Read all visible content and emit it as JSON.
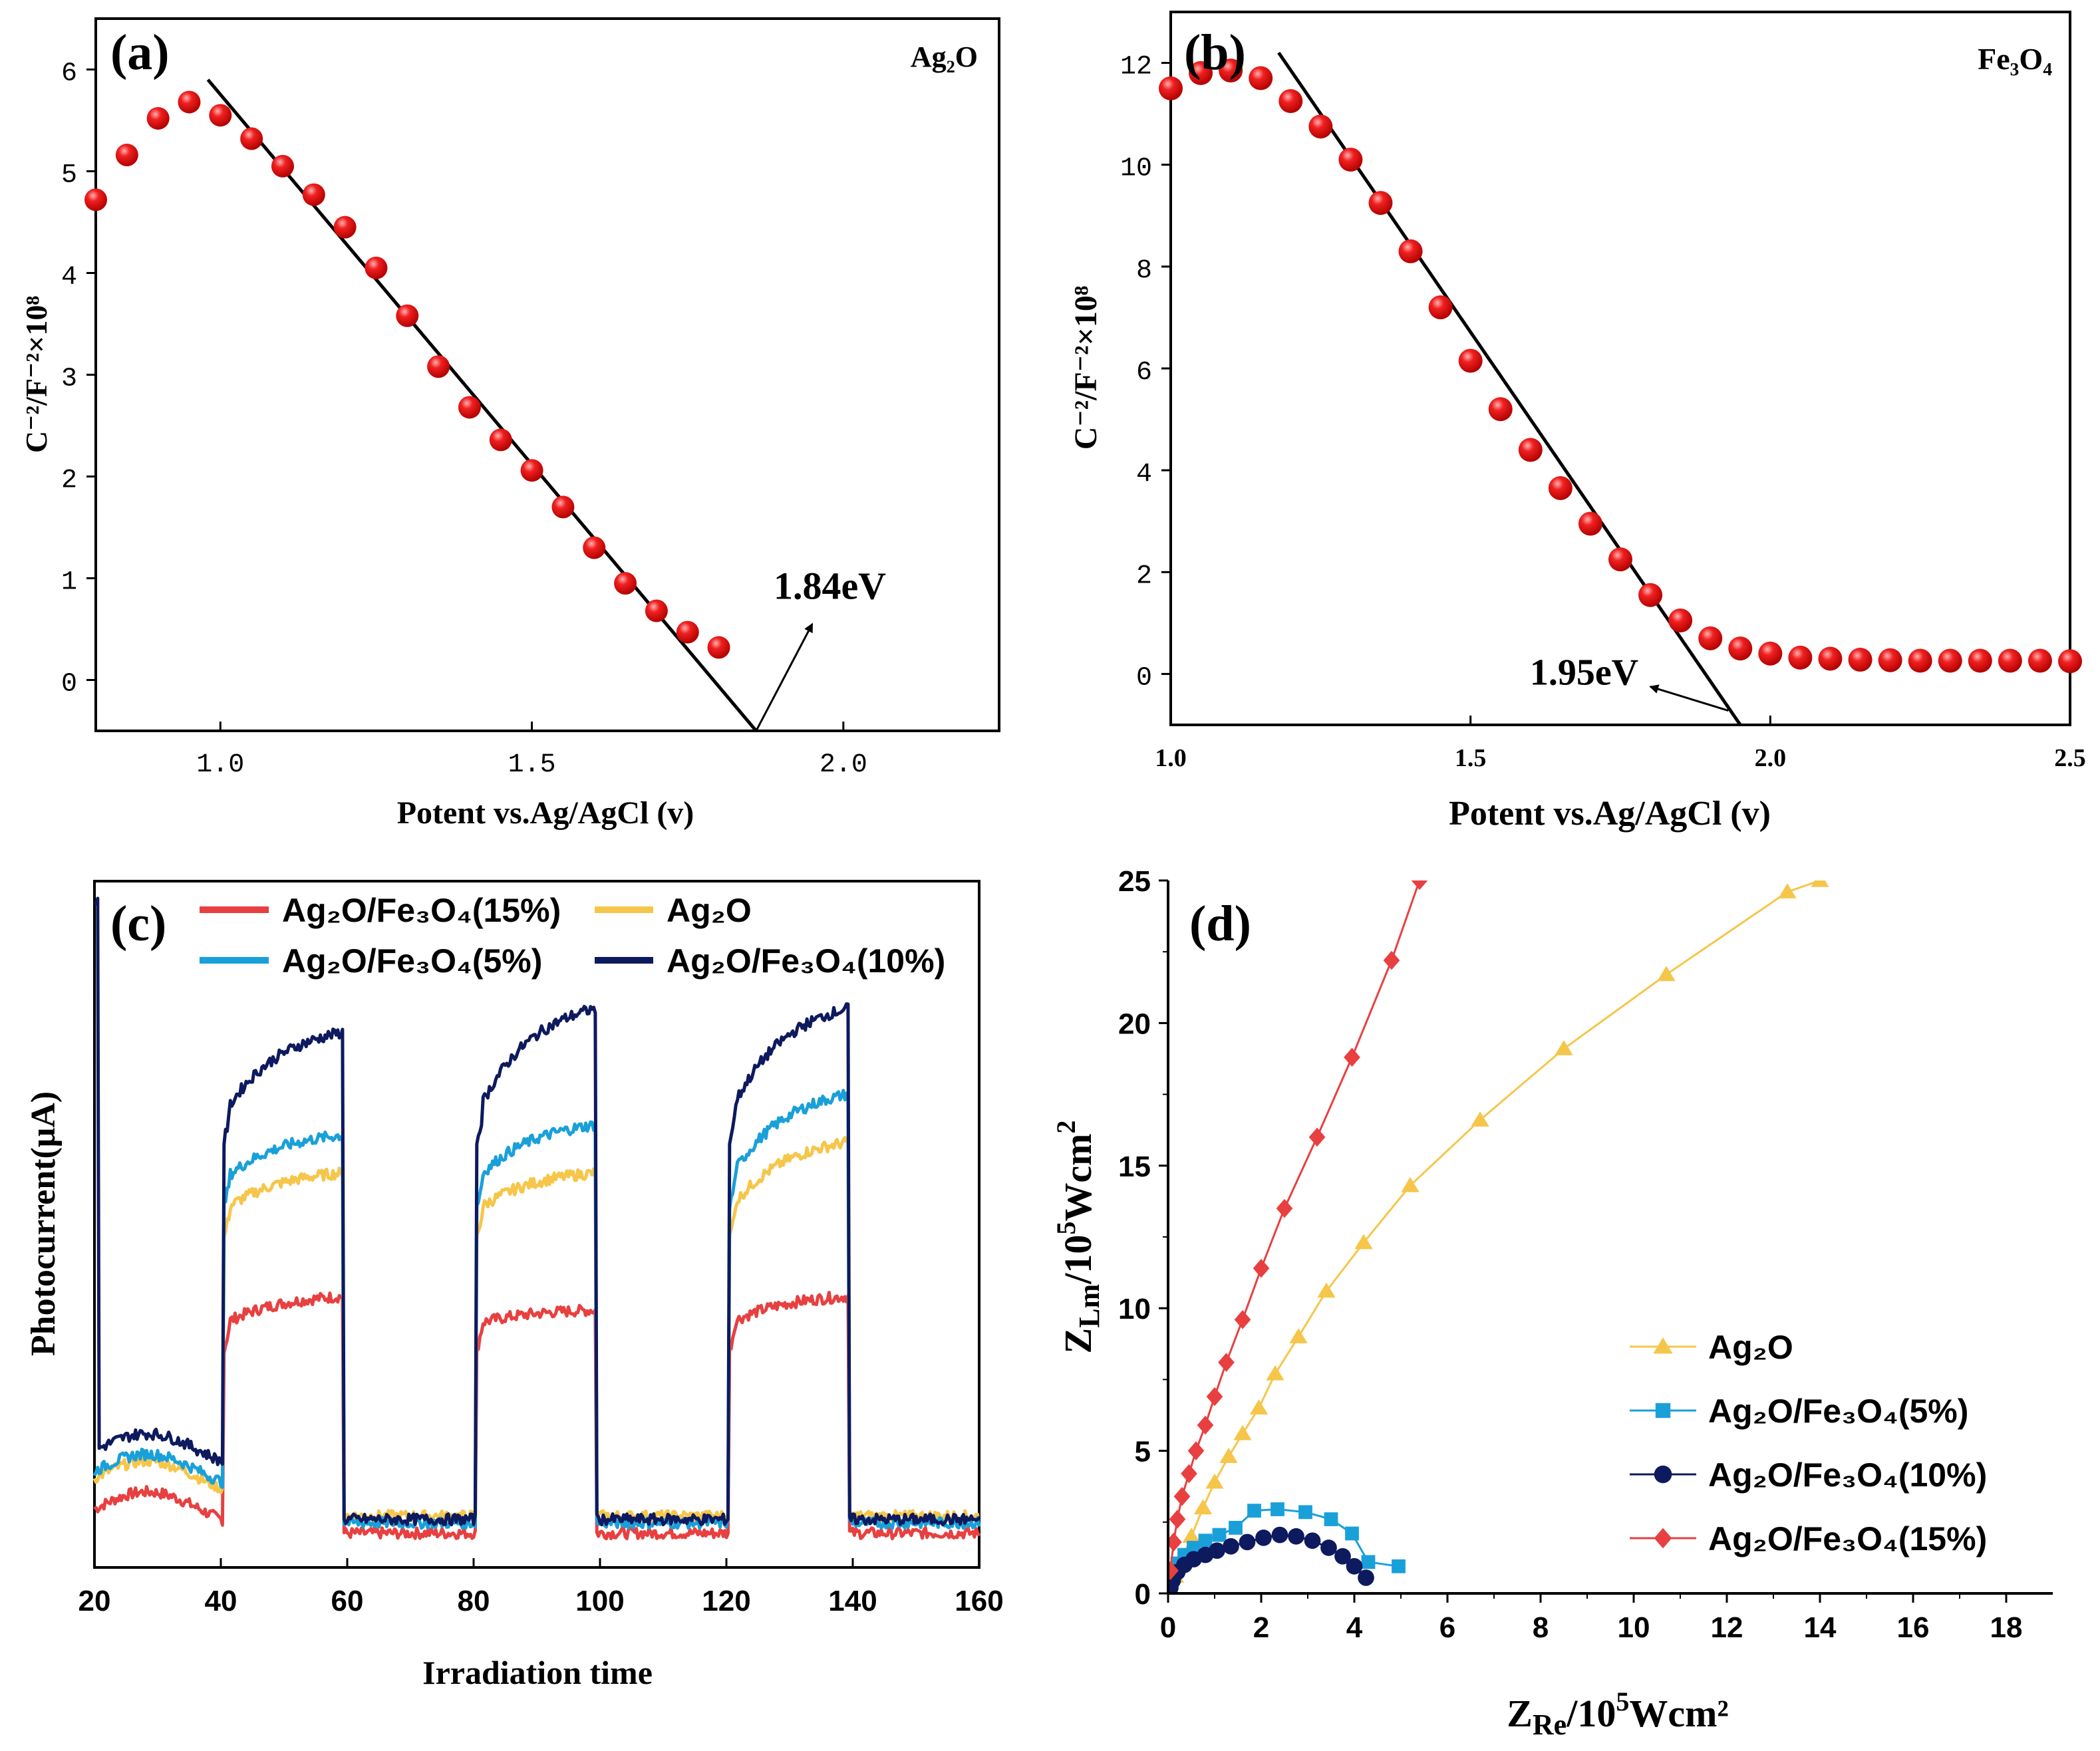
{
  "colors": {
    "red": "#e8201e",
    "yellow": "#f6c64a",
    "cyan": "#1aa0d9",
    "navy": "#0e1a5e",
    "c_red": "#e84040",
    "axis": "#000000"
  },
  "chart_data": [
    {
      "id": "a",
      "type": "scatter",
      "panel_label": "(a)",
      "corner_label": "Ag₂O",
      "xlabel": "Potent vs.Ag/AgCl (v)",
      "ylabel": "C⁻²/F⁻²×10⁸",
      "xlim": [
        0.8,
        2.25
      ],
      "ylim": [
        -0.5,
        6.5
      ],
      "xticks": [
        1.0,
        1.5,
        2.0
      ],
      "xtick_labels": [
        "1.0",
        "1.5",
        "2.0"
      ],
      "yticks": [
        0,
        1,
        2,
        3,
        4,
        5,
        6
      ],
      "ytick_labels": [
        "0",
        "1",
        "2",
        "3",
        "4",
        "5",
        "6"
      ],
      "points": {
        "x": [
          0.8,
          0.85,
          0.9,
          0.95,
          1.0,
          1.05,
          1.1,
          1.15,
          1.2,
          1.25,
          1.3,
          1.35,
          1.4,
          1.45,
          1.5,
          1.55,
          1.6,
          1.65,
          1.7,
          1.75,
          1.8
        ],
        "y": [
          4.72,
          5.16,
          5.52,
          5.68,
          5.55,
          5.32,
          5.05,
          4.77,
          4.45,
          4.05,
          3.58,
          3.08,
          2.68,
          2.36,
          2.06,
          1.7,
          1.3,
          0.95,
          0.68,
          0.47,
          0.32
        ]
      },
      "fit_line": {
        "x": [
          0.98,
          1.86
        ],
        "y": [
          5.9,
          -0.5
        ]
      },
      "annotation": {
        "text": "1.84eV",
        "arrow_from": [
          1.86,
          -0.5
        ],
        "arrow_to": [
          1.95,
          0.55
        ],
        "text_at": [
          1.92,
          0.85
        ]
      }
    },
    {
      "id": "b",
      "type": "scatter",
      "panel_label": "(b)",
      "corner_label": "Fe₃O₄",
      "xlabel": "Potent vs.Ag/AgCl (v)",
      "ylabel": "C⁻²/F⁻²×10⁸",
      "xlim": [
        1.0,
        2.5
      ],
      "ylim": [
        -1,
        13
      ],
      "xticks": [
        1.0,
        1.5,
        2.0,
        2.5
      ],
      "xtick_labels": [
        "1.0",
        "1.5",
        "2.0",
        "2.5"
      ],
      "yticks": [
        0,
        2,
        4,
        6,
        8,
        10,
        12
      ],
      "ytick_labels": [
        "0",
        "2",
        "4",
        "6",
        "8",
        "10",
        "12"
      ],
      "points": {
        "x": [
          1.0,
          1.05,
          1.1,
          1.15,
          1.2,
          1.25,
          1.3,
          1.35,
          1.4,
          1.45,
          1.5,
          1.55,
          1.6,
          1.65,
          1.7,
          1.75,
          1.8,
          1.85,
          1.9,
          1.95,
          2.0,
          2.05,
          2.1,
          2.15,
          2.2,
          2.25,
          2.3,
          2.35,
          2.4,
          2.45,
          2.5
        ],
        "y": [
          11.5,
          11.8,
          11.85,
          11.7,
          11.25,
          10.75,
          10.1,
          9.25,
          8.3,
          7.2,
          6.15,
          5.2,
          4.4,
          3.65,
          2.95,
          2.25,
          1.55,
          1.05,
          0.7,
          0.5,
          0.4,
          0.32,
          0.3,
          0.28,
          0.27,
          0.26,
          0.26,
          0.26,
          0.26,
          0.26,
          0.25
        ]
      },
      "fit_line": {
        "x": [
          1.18,
          1.95
        ],
        "y": [
          12.2,
          -1
        ]
      },
      "annotation": {
        "text": "1.95eV",
        "arrow_from": [
          1.93,
          -0.72
        ],
        "arrow_to": [
          1.8,
          -0.25
        ],
        "text_at": [
          1.61,
          0.05
        ]
      }
    },
    {
      "id": "c",
      "type": "line",
      "panel_label": "(c)",
      "xlabel": "Irradiation time",
      "ylabel": "Photocurrent(μA)",
      "xlim": [
        20,
        160
      ],
      "ylim": [
        0,
        100
      ],
      "xticks": [
        20,
        40,
        60,
        80,
        100,
        120,
        140,
        160
      ],
      "xtick_labels": [
        "20",
        "40",
        "60",
        "80",
        "100",
        "120",
        "140",
        "160"
      ],
      "legend": [
        {
          "name": "Ag₂O/Fe₃O₄(15%)",
          "color": "#e84040"
        },
        {
          "name": "Ag₂O",
          "color": "#f6c64a"
        },
        {
          "name": "Ag₂O/Fe₃O₄(5%)",
          "color": "#1aa0d9"
        },
        {
          "name": "Ag₂O/Fe₃O₄(10%)",
          "color": "#0e1a5e"
        }
      ],
      "series": [
        {
          "key": "navy",
          "color": "#0e1a5e",
          "off_level": 18.5,
          "on_start": 66.0,
          "on_end": 78.0,
          "on3_end": 81.5,
          "on2_end": 81.5,
          "dark_level": 5.5,
          "spike": 97.0
        },
        {
          "key": "cyan",
          "color": "#1aa0d9",
          "off_level": 15.5,
          "on_start": 56.5,
          "on_end": 63.0,
          "on2_end": 64.5,
          "on3_end": 69.0,
          "dark_level": 5.0
        },
        {
          "key": "yellow",
          "color": "#f6c64a",
          "off_level": 14.5,
          "on_start": 52.0,
          "on_end": 57.5,
          "on2_end": 57.5,
          "on3_end": 62.0,
          "dark_level": 6.0
        },
        {
          "key": "red",
          "color": "#e84040",
          "off_level": 10.0,
          "on_start": 35.5,
          "on_end": 39.5,
          "on2_end": 37.5,
          "on3_end": 39.5,
          "dark_level": 3.5
        }
      ]
    },
    {
      "id": "d",
      "type": "scatter",
      "panel_label": "(d)",
      "xlabel": "Z_Re/10⁵Wcm²",
      "ylabel": "Z_Lm/10⁵Wcm²",
      "xlim": [
        0,
        19
      ],
      "ylim": [
        0,
        25
      ],
      "xticks": [
        0,
        2,
        4,
        6,
        8,
        10,
        12,
        14,
        16,
        18
      ],
      "xtick_labels": [
        "0",
        "2",
        "4",
        "6",
        "8",
        "10",
        "12",
        "14",
        "16",
        "18"
      ],
      "yticks": [
        0,
        5,
        10,
        15,
        20,
        25
      ],
      "ytick_labels": [
        "0",
        "5",
        "10",
        "15",
        "20",
        "25"
      ],
      "legend": [
        {
          "name": "Ag₂O",
          "marker": "triangle",
          "color": "#f6c64a"
        },
        {
          "name": "Ag₂O/Fe₃O₄(5%)",
          "marker": "square",
          "color": "#1aa0d9"
        },
        {
          "name": "Ag₂O/Fe₃O₄(10%)",
          "marker": "circle",
          "color": "#0e1a5e"
        },
        {
          "name": "Ag₂O/Fe₃O₄(15%)",
          "marker": "diamond",
          "color": "#e84040"
        }
      ],
      "series": [
        {
          "name": "Ag₂O",
          "marker": "triangle",
          "color": "#f6c64a",
          "x": [
            0.05,
            0.15,
            0.3,
            0.5,
            0.75,
            1.0,
            1.3,
            1.6,
            1.95,
            2.3,
            2.8,
            3.4,
            4.2,
            5.2,
            6.7,
            8.5,
            10.7,
            13.3,
            14.0
          ],
          "y": [
            0.2,
            0.6,
            1.2,
            2.0,
            3.0,
            3.9,
            4.8,
            5.6,
            6.5,
            7.7,
            9.0,
            10.6,
            12.3,
            14.3,
            16.6,
            19.1,
            21.7,
            24.6,
            25.0
          ]
        },
        {
          "name": "Ag₂O/Fe₃O₄(5%)",
          "marker": "square",
          "color": "#1aa0d9",
          "x": [
            0.05,
            0.1,
            0.2,
            0.35,
            0.55,
            0.8,
            1.1,
            1.45,
            1.85,
            2.35,
            2.95,
            3.5,
            3.95,
            4.3,
            4.95
          ],
          "y": [
            0.3,
            0.7,
            1.05,
            1.35,
            1.6,
            1.85,
            2.05,
            2.3,
            2.9,
            2.95,
            2.85,
            2.6,
            2.1,
            1.1,
            0.95
          ]
        },
        {
          "name": "Ag₂O/Fe₃O₄(10%)",
          "marker": "circle",
          "color": "#0e1a5e",
          "x": [
            0.05,
            0.1,
            0.2,
            0.35,
            0.55,
            0.8,
            1.05,
            1.35,
            1.7,
            2.05,
            2.4,
            2.75,
            3.1,
            3.45,
            3.75,
            4.0,
            4.25
          ],
          "y": [
            0.2,
            0.45,
            0.75,
            1.0,
            1.2,
            1.35,
            1.5,
            1.65,
            1.8,
            1.95,
            2.05,
            2.0,
            1.85,
            1.6,
            1.3,
            0.95,
            0.55
          ]
        },
        {
          "name": "Ag₂O/Fe₃O₄(15%)",
          "marker": "diamond",
          "color": "#e84040",
          "x": [
            0.05,
            0.12,
            0.2,
            0.3,
            0.45,
            0.6,
            0.8,
            1.0,
            1.25,
            1.6,
            2.0,
            2.5,
            3.2,
            3.95,
            4.8,
            5.4
          ],
          "y": [
            0.8,
            1.8,
            2.6,
            3.4,
            4.2,
            5.0,
            5.9,
            6.9,
            8.1,
            9.6,
            11.4,
            13.5,
            16.0,
            18.8,
            22.2,
            25.0
          ]
        }
      ]
    }
  ]
}
